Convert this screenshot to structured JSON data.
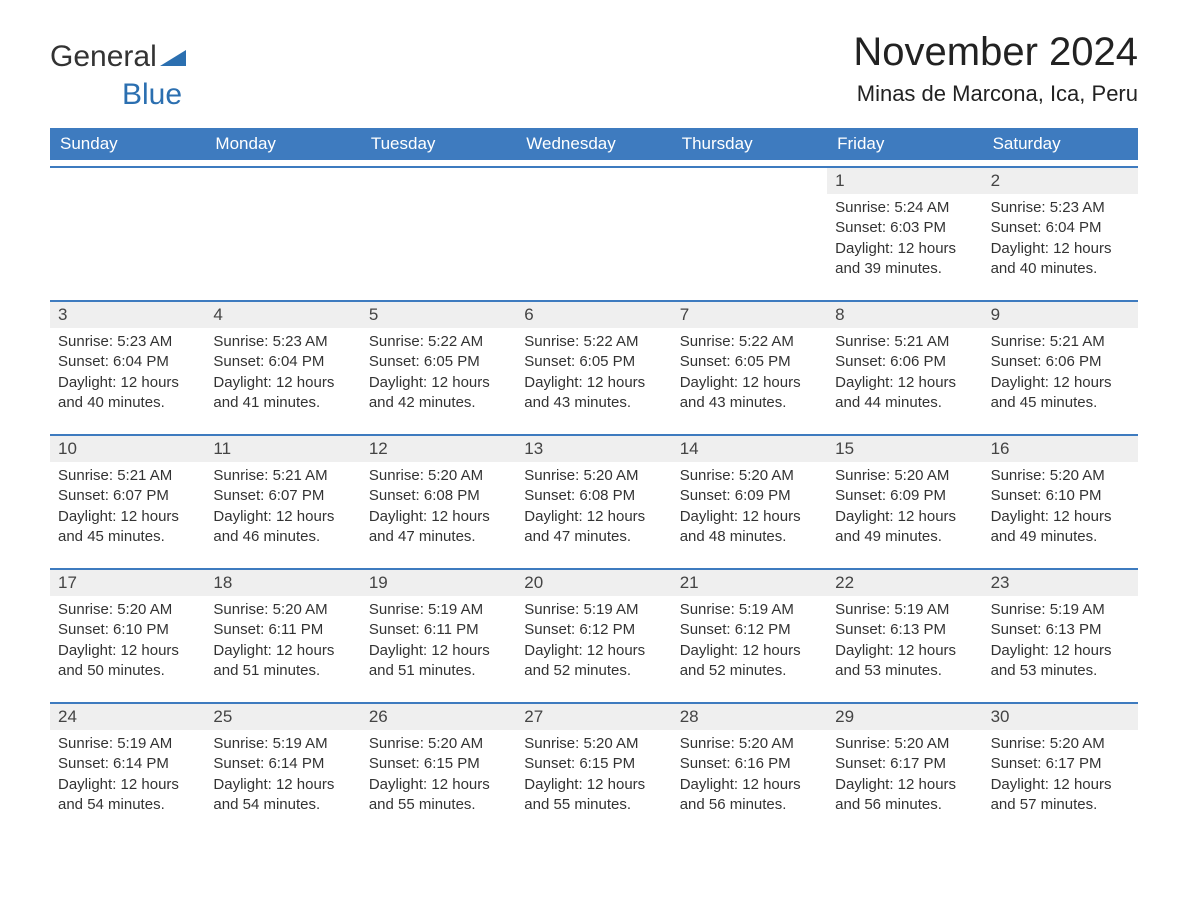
{
  "logo": {
    "part1": "General",
    "part2": "Blue"
  },
  "title": "November 2024",
  "location": "Minas de Marcona, Ica, Peru",
  "colors": {
    "header_bg": "#3e7bbf",
    "header_text": "#ffffff",
    "daynum_bg": "#efefef",
    "text": "#333333",
    "logo_general": "#333333",
    "logo_blue": "#2b6fb0",
    "rule": "#3e7bbf",
    "background": "#ffffff"
  },
  "day_headers": [
    "Sunday",
    "Monday",
    "Tuesday",
    "Wednesday",
    "Thursday",
    "Friday",
    "Saturday"
  ],
  "weeks": [
    [
      null,
      null,
      null,
      null,
      null,
      {
        "day": "1",
        "sunrise": "Sunrise: 5:24 AM",
        "sunset": "Sunset: 6:03 PM",
        "daylight": "Daylight: 12 hours and 39 minutes."
      },
      {
        "day": "2",
        "sunrise": "Sunrise: 5:23 AM",
        "sunset": "Sunset: 6:04 PM",
        "daylight": "Daylight: 12 hours and 40 minutes."
      }
    ],
    [
      {
        "day": "3",
        "sunrise": "Sunrise: 5:23 AM",
        "sunset": "Sunset: 6:04 PM",
        "daylight": "Daylight: 12 hours and 40 minutes."
      },
      {
        "day": "4",
        "sunrise": "Sunrise: 5:23 AM",
        "sunset": "Sunset: 6:04 PM",
        "daylight": "Daylight: 12 hours and 41 minutes."
      },
      {
        "day": "5",
        "sunrise": "Sunrise: 5:22 AM",
        "sunset": "Sunset: 6:05 PM",
        "daylight": "Daylight: 12 hours and 42 minutes."
      },
      {
        "day": "6",
        "sunrise": "Sunrise: 5:22 AM",
        "sunset": "Sunset: 6:05 PM",
        "daylight": "Daylight: 12 hours and 43 minutes."
      },
      {
        "day": "7",
        "sunrise": "Sunrise: 5:22 AM",
        "sunset": "Sunset: 6:05 PM",
        "daylight": "Daylight: 12 hours and 43 minutes."
      },
      {
        "day": "8",
        "sunrise": "Sunrise: 5:21 AM",
        "sunset": "Sunset: 6:06 PM",
        "daylight": "Daylight: 12 hours and 44 minutes."
      },
      {
        "day": "9",
        "sunrise": "Sunrise: 5:21 AM",
        "sunset": "Sunset: 6:06 PM",
        "daylight": "Daylight: 12 hours and 45 minutes."
      }
    ],
    [
      {
        "day": "10",
        "sunrise": "Sunrise: 5:21 AM",
        "sunset": "Sunset: 6:07 PM",
        "daylight": "Daylight: 12 hours and 45 minutes."
      },
      {
        "day": "11",
        "sunrise": "Sunrise: 5:21 AM",
        "sunset": "Sunset: 6:07 PM",
        "daylight": "Daylight: 12 hours and 46 minutes."
      },
      {
        "day": "12",
        "sunrise": "Sunrise: 5:20 AM",
        "sunset": "Sunset: 6:08 PM",
        "daylight": "Daylight: 12 hours and 47 minutes."
      },
      {
        "day": "13",
        "sunrise": "Sunrise: 5:20 AM",
        "sunset": "Sunset: 6:08 PM",
        "daylight": "Daylight: 12 hours and 47 minutes."
      },
      {
        "day": "14",
        "sunrise": "Sunrise: 5:20 AM",
        "sunset": "Sunset: 6:09 PM",
        "daylight": "Daylight: 12 hours and 48 minutes."
      },
      {
        "day": "15",
        "sunrise": "Sunrise: 5:20 AM",
        "sunset": "Sunset: 6:09 PM",
        "daylight": "Daylight: 12 hours and 49 minutes."
      },
      {
        "day": "16",
        "sunrise": "Sunrise: 5:20 AM",
        "sunset": "Sunset: 6:10 PM",
        "daylight": "Daylight: 12 hours and 49 minutes."
      }
    ],
    [
      {
        "day": "17",
        "sunrise": "Sunrise: 5:20 AM",
        "sunset": "Sunset: 6:10 PM",
        "daylight": "Daylight: 12 hours and 50 minutes."
      },
      {
        "day": "18",
        "sunrise": "Sunrise: 5:20 AM",
        "sunset": "Sunset: 6:11 PM",
        "daylight": "Daylight: 12 hours and 51 minutes."
      },
      {
        "day": "19",
        "sunrise": "Sunrise: 5:19 AM",
        "sunset": "Sunset: 6:11 PM",
        "daylight": "Daylight: 12 hours and 51 minutes."
      },
      {
        "day": "20",
        "sunrise": "Sunrise: 5:19 AM",
        "sunset": "Sunset: 6:12 PM",
        "daylight": "Daylight: 12 hours and 52 minutes."
      },
      {
        "day": "21",
        "sunrise": "Sunrise: 5:19 AM",
        "sunset": "Sunset: 6:12 PM",
        "daylight": "Daylight: 12 hours and 52 minutes."
      },
      {
        "day": "22",
        "sunrise": "Sunrise: 5:19 AM",
        "sunset": "Sunset: 6:13 PM",
        "daylight": "Daylight: 12 hours and 53 minutes."
      },
      {
        "day": "23",
        "sunrise": "Sunrise: 5:19 AM",
        "sunset": "Sunset: 6:13 PM",
        "daylight": "Daylight: 12 hours and 53 minutes."
      }
    ],
    [
      {
        "day": "24",
        "sunrise": "Sunrise: 5:19 AM",
        "sunset": "Sunset: 6:14 PM",
        "daylight": "Daylight: 12 hours and 54 minutes."
      },
      {
        "day": "25",
        "sunrise": "Sunrise: 5:19 AM",
        "sunset": "Sunset: 6:14 PM",
        "daylight": "Daylight: 12 hours and 54 minutes."
      },
      {
        "day": "26",
        "sunrise": "Sunrise: 5:20 AM",
        "sunset": "Sunset: 6:15 PM",
        "daylight": "Daylight: 12 hours and 55 minutes."
      },
      {
        "day": "27",
        "sunrise": "Sunrise: 5:20 AM",
        "sunset": "Sunset: 6:15 PM",
        "daylight": "Daylight: 12 hours and 55 minutes."
      },
      {
        "day": "28",
        "sunrise": "Sunrise: 5:20 AM",
        "sunset": "Sunset: 6:16 PM",
        "daylight": "Daylight: 12 hours and 56 minutes."
      },
      {
        "day": "29",
        "sunrise": "Sunrise: 5:20 AM",
        "sunset": "Sunset: 6:17 PM",
        "daylight": "Daylight: 12 hours and 56 minutes."
      },
      {
        "day": "30",
        "sunrise": "Sunrise: 5:20 AM",
        "sunset": "Sunset: 6:17 PM",
        "daylight": "Daylight: 12 hours and 57 minutes."
      }
    ]
  ]
}
